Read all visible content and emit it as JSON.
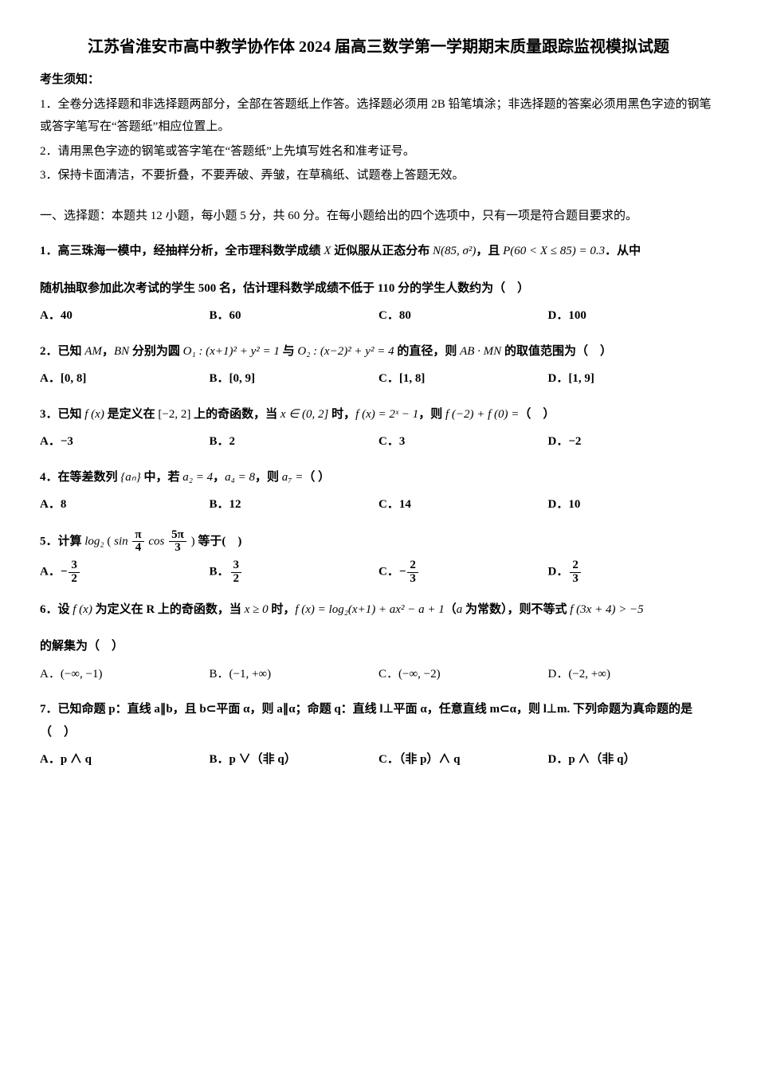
{
  "title": "江苏省淮安市高中教学协作体 2024 届高三数学第一学期期末质量跟踪监视模拟试题",
  "notices": {
    "head": "考生须知：",
    "items": [
      "1．全卷分选择题和非选择题两部分，全部在答题纸上作答。选择题必须用 2B 铅笔填涂；非选择题的答案必须用黑色字迹的钢笔或答字笔写在“答题纸”相应位置上。",
      "2．请用黑色字迹的钢笔或答字笔在“答题纸”上先填写姓名和准考证号。",
      "3．保持卡面清洁，不要折叠，不要弄破、弄皱，在草稿纸、试题卷上答题无效。"
    ]
  },
  "section1": "一、选择题：本题共 12 小题，每小题 5 分，共 60 分。在每小题给出的四个选项中，只有一项是符合题目要求的。",
  "q1": {
    "line1_pre": "1．高三珠海一模中，经抽样分析，全市理科数学成绩 ",
    "var1": "X",
    "line1_mid": " 近似服从正态分布 ",
    "dist": "N(85, σ²)",
    "line1_mid2": "，且 ",
    "prob": "P(60 < X ≤ 85) = 0.3",
    "line1_end": "．从中",
    "line2": "随机抽取参加此次考试的学生 500 名，估计理科数学成绩不低于 110 分的学生人数约为（　）",
    "opts": {
      "A": "A．40",
      "B": "B．60",
      "C": "C．80",
      "D": "D．100"
    }
  },
  "q2": {
    "pre": "2．已知 ",
    "am": "AM",
    "mid1": "，",
    "bn": "BN",
    "mid2": " 分别为圆 ",
    "o1": "O₁ : (x+1)² + y² = 1",
    "mid3": " 与 ",
    "o2": "O₂ : (x−2)² + y² = 4",
    "mid4": " 的直径，则 ",
    "abmn": "AB · MN",
    "end": " 的取值范围为（　）",
    "opts": {
      "A": "A．[0, 8]",
      "B": "B．[0, 9]",
      "C": "C．[1, 8]",
      "D": "D．[1, 9]"
    }
  },
  "q3": {
    "pre": "3．已知 ",
    "fx": "f (x)",
    "mid1": " 是定义在 ",
    "dom": "[−2, 2]",
    "mid2": " 上的奇函数，当 ",
    "xin": "x ∈ (0, 2]",
    "mid3": " 时，",
    "def": "f (x) = 2ˣ − 1",
    "mid4": "，则 ",
    "expr": "f (−2) + f (0) =",
    "end": "（　）",
    "opts": {
      "A": "A．−3",
      "B": "B．2",
      "C": "C．3",
      "D": "D．−2"
    }
  },
  "q4": {
    "pre": "4．在等差数列 ",
    "seq": "{aₙ}",
    "mid1": " 中，若 ",
    "a2": "a₂ = 4",
    "comma": "，",
    "a4": "a₄ = 8",
    "mid2": "，则 ",
    "a7": "a₇ =",
    "end": "（ ）",
    "opts": {
      "A": "A．8",
      "B": "B．12",
      "C": "C．14",
      "D": "D．10"
    }
  },
  "q5": {
    "pre": "5．计算 ",
    "log": "log₂",
    "sin": "sin",
    "pi4_num": "π",
    "pi4_den": "4",
    "cos": "cos",
    "p53_num": "5π",
    "p53_den": "3",
    "end": " 等于(　)",
    "opts": {
      "A_pre": "A．−",
      "A_num": "3",
      "A_den": "2",
      "B_pre": "B．",
      "B_num": "3",
      "B_den": "2",
      "C_pre": "C．−",
      "C_num": "2",
      "C_den": "3",
      "D_pre": "D．",
      "D_num": "2",
      "D_den": "3"
    }
  },
  "q6": {
    "pre": "6．设 ",
    "fx": "f (x)",
    "mid1": " 为定义在 R 上的奇函数，当 ",
    "xge": "x ≥ 0",
    "mid2": " 时，",
    "def": "f (x) = log₂(x+1) + ax² − a + 1",
    "mid3": "（",
    "avar": "a",
    "mid4": " 为常数），则不等式 ",
    "ineq": "f (3x + 4) > −5",
    "line2": "的解集为（　）",
    "opts": {
      "A": "A．(−∞, −1)",
      "B": "B．(−1, +∞)",
      "C": "C．(−∞, −2)",
      "D": "D．(−2, +∞)"
    }
  },
  "q7": {
    "text": "7．已知命题 p：直线 a∥b，且 b⊂平面 α，则 a∥α；命题 q：直线 l⊥平面 α，任意直线 m⊂α，则 l⊥m. 下列命题为真命题的是（　）",
    "opts": {
      "A": "A．p ∧ q",
      "B": "B．p ∨（非 q）",
      "C": "C．（非 p）∧ q",
      "D": "D．p ∧（非 q）"
    }
  }
}
